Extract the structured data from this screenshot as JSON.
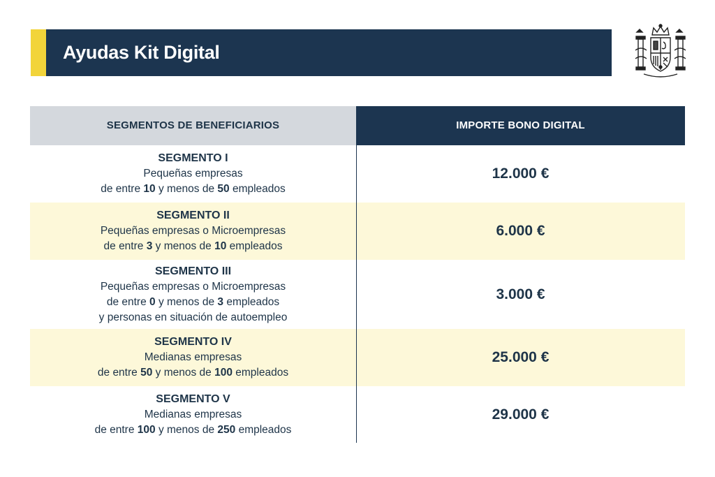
{
  "header": {
    "title": "Ayudas Kit Digital"
  },
  "emblem": {
    "icon": "coat-of-arms-spain-icon"
  },
  "table": {
    "columns": [
      "SEGMENTOS DE BENEFICIARIOS",
      "IMPORTE BONO DIGITAL"
    ],
    "rows": [
      {
        "segment": "SEGMENTO I",
        "line1": "Pequeñas empresas",
        "pre": "de entre ",
        "min": "10",
        "mid": " y menos de ",
        "max": "50",
        "post": " empleados",
        "extra": "",
        "amount": "12.000 €"
      },
      {
        "segment": "SEGMENTO II",
        "line1": "Pequeñas empresas o Microempresas",
        "pre": "de entre ",
        "min": "3",
        "mid": " y menos de ",
        "max": "10",
        "post": " empleados",
        "extra": "",
        "amount": "6.000 €"
      },
      {
        "segment": "SEGMENTO III",
        "line1": "Pequeñas empresas o Microempresas",
        "pre": "de entre ",
        "min": "0",
        "mid": " y menos de ",
        "max": "3",
        "post": " empleados",
        "extra": "y personas en situación de autoempleo",
        "amount": "3.000 €"
      },
      {
        "segment": "SEGMENTO IV",
        "line1": "Medianas empresas",
        "pre": "de entre ",
        "min": "50",
        "mid": " y menos de ",
        "max": "100",
        "post": " empleados",
        "extra": "",
        "amount": "25.000 €"
      },
      {
        "segment": "SEGMENTO V",
        "line1": "Medianas empresas",
        "pre": "de entre ",
        "min": "100",
        "mid": " y menos de ",
        "max": "250",
        "post": " empleados",
        "extra": "",
        "amount": "29.000 €"
      }
    ]
  },
  "colors": {
    "navy": "#1c3550",
    "yellow": "#f2d43a",
    "header_gray": "#d4d8dd",
    "row_alt": "#fdf8d9"
  }
}
